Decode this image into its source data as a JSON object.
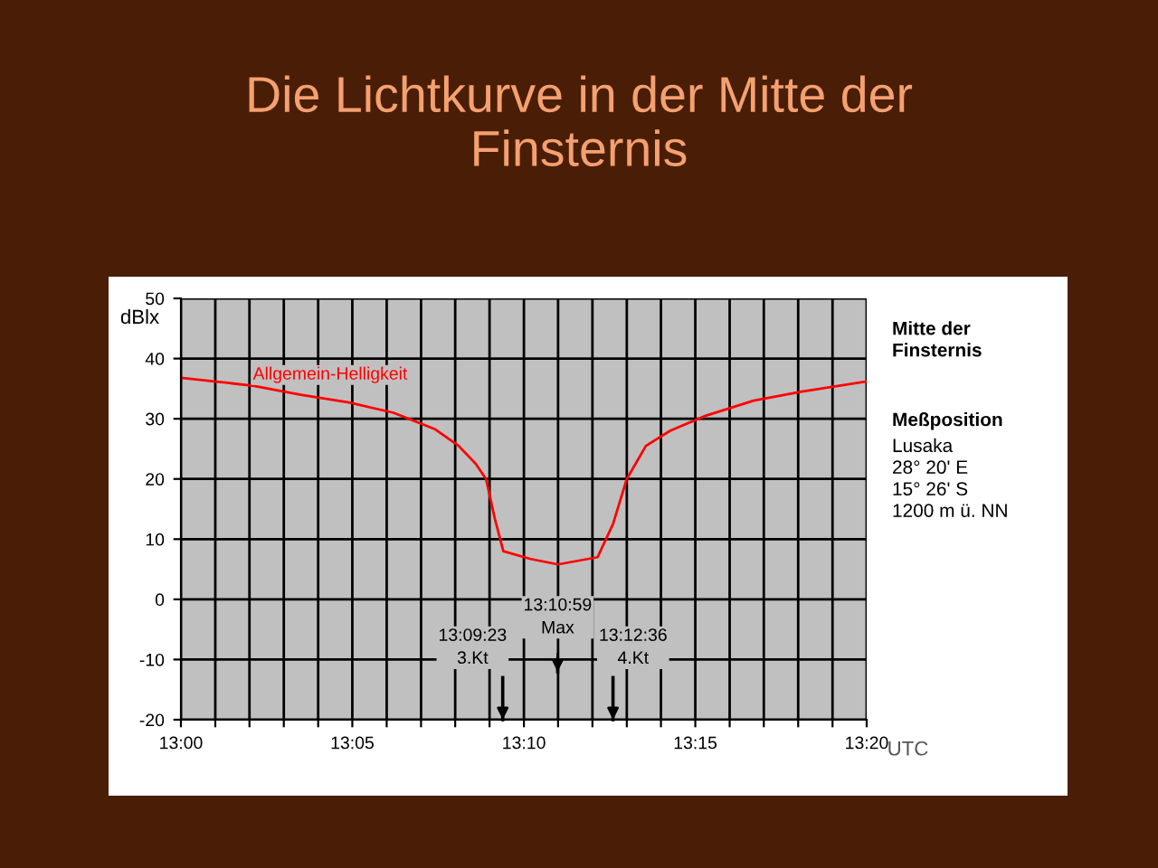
{
  "chart_data": {
    "type": "line",
    "title": "Die Lichtkurve in der Mitte der\nFinsternis",
    "xlabel": "UTC",
    "ylabel": "dBlx",
    "x": [
      13.0,
      13.035,
      13.0583,
      13.0817,
      13.1033,
      13.1233,
      13.135,
      13.1433,
      13.1483,
      13.1525,
      13.1567,
      13.17,
      13.1833,
      13.2025,
      13.21,
      13.2167,
      13.226,
      13.2377,
      13.255,
      13.2783,
      13.3017,
      13.3333
    ],
    "series": [
      {
        "name": "Allgemein-Helligkeit",
        "color": "#ff0000",
        "values": [
          36.8,
          35.5,
          34,
          32.7,
          31,
          28.3,
          25.5,
          22.5,
          20,
          13.5,
          8,
          6.7,
          5.8,
          7.0,
          12.5,
          20,
          25.5,
          28,
          30.5,
          33,
          34.5,
          36.2
        ]
      }
    ],
    "xlim": [
      13.0,
      13.3333
    ],
    "ylim": [
      -20,
      50
    ],
    "xticks": [
      {
        "value": 13.0,
        "label": "13:00"
      },
      {
        "value": 13.0167,
        "label": null
      },
      {
        "value": 13.0333,
        "label": null
      },
      {
        "value": 13.05,
        "label": null
      },
      {
        "value": 13.0667,
        "label": null
      },
      {
        "value": 13.0833,
        "label": "13:05"
      },
      {
        "value": 13.1,
        "label": null
      },
      {
        "value": 13.1167,
        "label": null
      },
      {
        "value": 13.1333,
        "label": null
      },
      {
        "value": 13.15,
        "label": null
      },
      {
        "value": 13.1667,
        "label": "13:10"
      },
      {
        "value": 13.1833,
        "label": null
      },
      {
        "value": 13.2,
        "label": null
      },
      {
        "value": 13.2167,
        "label": null
      },
      {
        "value": 13.2333,
        "label": null
      },
      {
        "value": 13.25,
        "label": "13:15"
      },
      {
        "value": 13.2667,
        "label": null
      },
      {
        "value": 13.2833,
        "label": null
      },
      {
        "value": 13.3,
        "label": null
      },
      {
        "value": 13.3167,
        "label": null
      },
      {
        "value": 13.3333,
        "label": "13:20"
      }
    ],
    "yticks": [
      -20,
      -10,
      0,
      10,
      20,
      30,
      40,
      50
    ],
    "grid": true,
    "legend": false,
    "marker": "none",
    "line_style": "solid",
    "ref_lines": [
      {
        "axis": "x",
        "value": 13.1564,
        "label": "13:09:23\n3.Kt"
      },
      {
        "axis": "x",
        "value": 13.1831,
        "label": "13:10:59\nMax"
      },
      {
        "axis": "x",
        "value": 13.21,
        "label": "13:12:36\n4.Kt"
      }
    ],
    "annotations": [
      "Mitte der\nFinsternis",
      "Meßposition",
      "Lusaka\n28° 20' E\n15° 26' S\n1200 m ü. NN"
    ]
  }
}
